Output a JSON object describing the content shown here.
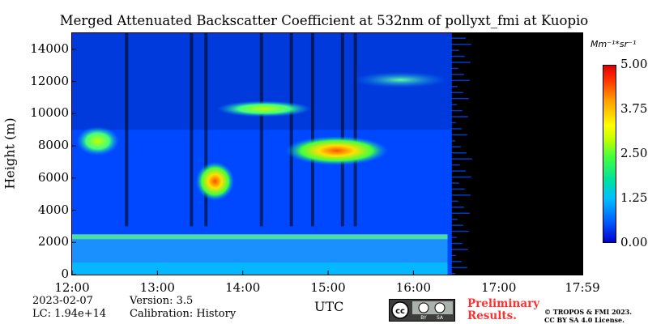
{
  "chart_data": {
    "type": "heatmap",
    "title": "Merged Attenuated Backscatter Coefficient at 532nm of pollyxt_fmi at Kuopio",
    "ylabel": "Height (m)",
    "xlabel": "UTC",
    "yticks": [
      "0",
      "2000",
      "4000",
      "6000",
      "8000",
      "10000",
      "12000",
      "14000"
    ],
    "ytick_values": [
      0,
      2000,
      4000,
      6000,
      8000,
      10000,
      12000,
      14000
    ],
    "ylim": [
      0,
      15000
    ],
    "xticks": [
      "12:00",
      "13:00",
      "14:00",
      "15:00",
      "16:00",
      "17:00",
      "17:59"
    ],
    "xtick_values_hours": [
      12.0,
      13.0,
      14.0,
      15.0,
      16.0,
      17.0,
      17.98
    ],
    "xlim_hours": [
      12.0,
      17.98
    ],
    "colorbar": {
      "unit": "Mm⁻¹*sr⁻¹",
      "ticks": [
        "0.00",
        "1.25",
        "2.50",
        "3.75",
        "5.00"
      ],
      "tick_values": [
        0.0,
        1.25,
        2.5,
        3.75,
        5.0
      ],
      "range": [
        0.0,
        5.0
      ]
    },
    "features": [
      {
        "name": "boundary layer",
        "t_start": 12.0,
        "t_end": 16.4,
        "h_min": 0,
        "h_max": 2500,
        "value": 2.0
      },
      {
        "name": "cloud",
        "t_start": 12.05,
        "t_end": 12.55,
        "h_min": 7400,
        "h_max": 9200,
        "value": 3.0
      },
      {
        "name": "cloud",
        "t_start": 13.45,
        "t_end": 13.9,
        "h_min": 4600,
        "h_max": 7000,
        "value": 4.0
      },
      {
        "name": "cloud",
        "t_start": 13.7,
        "t_end": 14.8,
        "h_min": 9800,
        "h_max": 10800,
        "value": 2.8
      },
      {
        "name": "cloud",
        "t_start": 14.5,
        "t_end": 15.7,
        "h_min": 6800,
        "h_max": 8600,
        "value": 4.2
      },
      {
        "name": "cloud",
        "t_start": 15.3,
        "t_end": 16.4,
        "h_min": 11600,
        "h_max": 12600,
        "value": 2.2
      }
    ],
    "no_data_after_hours": 16.45,
    "date": "2023-02-07",
    "version": "Version: 3.5",
    "lc": "LC: 1.94e+14",
    "calibration": "Calibration: History"
  },
  "footer": {
    "date": "2023-02-07",
    "lc": "LC: 1.94e+14",
    "version": "Version: 3.5",
    "calibration": "Calibration: History",
    "prelim_line1": "Preliminary",
    "prelim_line2": "Results.",
    "copyright_line1": "© TROPOS & FMI 2023.",
    "copyright_line2": "CC BY SA 4.0 License.",
    "license_badge_text1": "BY",
    "license_badge_text2": "SA"
  },
  "colors": {
    "background_plot": "#0040ff",
    "no_data": "#000000",
    "accent_red": "#ff3030"
  }
}
